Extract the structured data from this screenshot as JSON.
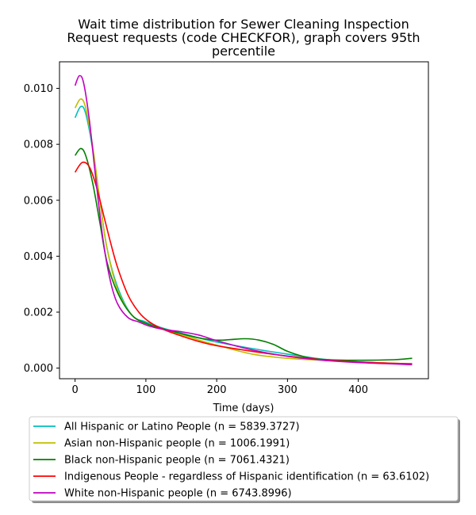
{
  "chart_data": {
    "type": "line",
    "title": "Wait time distribution  for Sewer Cleaning Inspection Request  requests (code CHECKFOR), graph covers 95th percentile",
    "title_lines": [
      "Wait time distribution  for Sewer Cleaning Inspection",
      "Request  requests (code CHECKFOR), graph covers 95th",
      "percentile"
    ],
    "xlabel": "Time (days)",
    "ylabel": "",
    "xlim": [
      -22,
      499
    ],
    "ylim": [
      -0.00038,
      0.01095
    ],
    "xticks": [
      0,
      100,
      200,
      300,
      400
    ],
    "yticks": [
      0.0,
      0.002,
      0.004,
      0.006,
      0.008,
      0.01
    ],
    "ytick_labels": [
      "0.000",
      "0.002",
      "0.004",
      "0.006",
      "0.008",
      "0.010"
    ],
    "grid": false,
    "legend_placement": "below plot",
    "series": [
      {
        "name": "All Hispanic or Latino People (n = 5839.3727)",
        "color": "#00bfbf",
        "x": [
          0,
          8,
          15,
          25,
          35,
          45,
          60,
          80,
          100,
          125,
          150,
          175,
          200,
          250,
          300,
          350,
          400,
          450,
          476
        ],
        "y": [
          0.00895,
          0.00935,
          0.0091,
          0.0078,
          0.006,
          0.0043,
          0.0029,
          0.0019,
          0.00165,
          0.00142,
          0.00125,
          0.00108,
          0.00093,
          0.0007,
          0.0005,
          0.00032,
          0.00022,
          0.00016,
          0.00016
        ]
      },
      {
        "name": "Asian non-Hispanic people (n = 1006.1991)",
        "color": "#bfbf00",
        "x": [
          0,
          8,
          15,
          25,
          35,
          45,
          60,
          80,
          100,
          125,
          150,
          175,
          200,
          250,
          300,
          350,
          400,
          450,
          476
        ],
        "y": [
          0.0093,
          0.00962,
          0.0093,
          0.0079,
          0.006,
          0.0043,
          0.0028,
          0.0019,
          0.0016,
          0.00138,
          0.0012,
          0.001,
          0.00082,
          0.0005,
          0.00035,
          0.00028,
          0.00022,
          0.00017,
          0.00015
        ]
      },
      {
        "name": "Black non-Hispanic people (n = 7061.4321)",
        "color": "#008000",
        "x": [
          0,
          8,
          15,
          25,
          35,
          45,
          60,
          80,
          100,
          125,
          150,
          175,
          200,
          220,
          240,
          260,
          280,
          300,
          325,
          350,
          400,
          450,
          476
        ],
        "y": [
          0.0076,
          0.00785,
          0.0076,
          0.0066,
          0.0052,
          0.0038,
          0.0027,
          0.0019,
          0.0016,
          0.0014,
          0.00123,
          0.00108,
          0.001,
          0.00102,
          0.00105,
          0.001,
          0.00085,
          0.0006,
          0.0004,
          0.00031,
          0.00028,
          0.0003,
          0.00035
        ]
      },
      {
        "name": "Indigenous People - regardless of Hispanic identification (n = 63.6102)",
        "color": "#ff0000",
        "x": [
          0,
          10,
          20,
          30,
          40,
          50,
          60,
          75,
          90,
          105,
          125,
          150,
          175,
          200,
          250,
          300,
          350,
          400,
          450,
          476
        ],
        "y": [
          0.007,
          0.00735,
          0.0072,
          0.0065,
          0.0055,
          0.0045,
          0.0036,
          0.0026,
          0.002,
          0.00165,
          0.00138,
          0.00115,
          0.00095,
          0.0008,
          0.0006,
          0.00043,
          0.0003,
          0.00022,
          0.00017,
          0.00015
        ]
      },
      {
        "name": "White non-Hispanic people (n = 6743.8996)",
        "color": "#bf00bf",
        "x": [
          0,
          6,
          12,
          20,
          30,
          40,
          50,
          60,
          75,
          90,
          105,
          125,
          150,
          175,
          200,
          250,
          300,
          350,
          400,
          450,
          476
        ],
        "y": [
          0.0101,
          0.01045,
          0.0102,
          0.0089,
          0.0066,
          0.0045,
          0.0031,
          0.0023,
          0.0018,
          0.00165,
          0.0015,
          0.00138,
          0.0013,
          0.00118,
          0.00098,
          0.00065,
          0.00042,
          0.00028,
          0.0002,
          0.00015,
          0.00012
        ]
      }
    ]
  }
}
